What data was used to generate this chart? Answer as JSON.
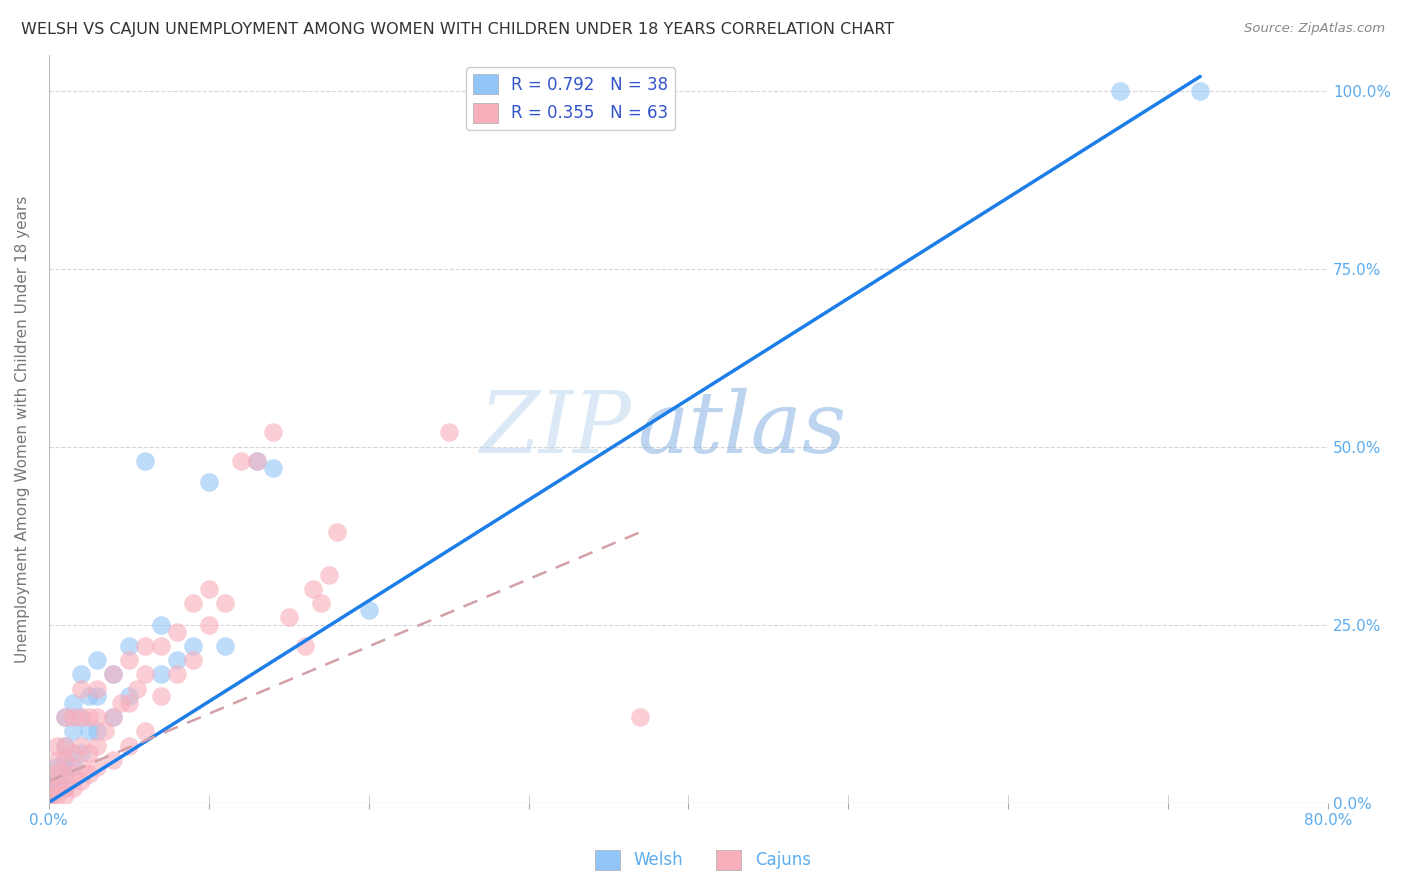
{
  "title": "WELSH VS CAJUN UNEMPLOYMENT AMONG WOMEN WITH CHILDREN UNDER 18 YEARS CORRELATION CHART",
  "source": "Source: ZipAtlas.com",
  "ylabel": "Unemployment Among Women with Children Under 18 years",
  "xlim": [
    0.0,
    0.8
  ],
  "ylim": [
    0.0,
    1.05
  ],
  "welsh_color": "#92C5F7",
  "cajun_color": "#F9AEBB",
  "welsh_line_color": "#1E7EE8",
  "cajun_line_color": "#E8647A",
  "cajun_line_dash_color": "#D4A0A8",
  "welsh_R": 0.792,
  "welsh_N": 38,
  "cajun_R": 0.355,
  "cajun_N": 63,
  "watermark_zip": "ZIP",
  "watermark_atlas": "atlas",
  "legend_label_welsh": "Welsh",
  "legend_label_cajun": "Cajuns",
  "welsh_scatter_x": [
    0.0,
    0.0,
    0.0,
    0.005,
    0.005,
    0.005,
    0.01,
    0.01,
    0.01,
    0.01,
    0.01,
    0.015,
    0.015,
    0.015,
    0.02,
    0.02,
    0.02,
    0.025,
    0.025,
    0.03,
    0.03,
    0.03,
    0.04,
    0.04,
    0.05,
    0.05,
    0.06,
    0.07,
    0.07,
    0.08,
    0.09,
    0.1,
    0.11,
    0.13,
    0.14,
    0.2,
    0.67,
    0.72
  ],
  "welsh_scatter_y": [
    0.0,
    0.01,
    0.02,
    0.02,
    0.03,
    0.05,
    0.02,
    0.04,
    0.06,
    0.08,
    0.12,
    0.05,
    0.1,
    0.14,
    0.07,
    0.12,
    0.18,
    0.1,
    0.15,
    0.1,
    0.15,
    0.2,
    0.12,
    0.18,
    0.15,
    0.22,
    0.48,
    0.18,
    0.25,
    0.2,
    0.22,
    0.45,
    0.22,
    0.48,
    0.47,
    0.27,
    1.0,
    1.0
  ],
  "cajun_scatter_x": [
    0.0,
    0.0,
    0.0,
    0.0,
    0.005,
    0.005,
    0.005,
    0.005,
    0.005,
    0.01,
    0.01,
    0.01,
    0.01,
    0.01,
    0.01,
    0.015,
    0.015,
    0.015,
    0.015,
    0.02,
    0.02,
    0.02,
    0.02,
    0.02,
    0.025,
    0.025,
    0.025,
    0.03,
    0.03,
    0.03,
    0.03,
    0.035,
    0.04,
    0.04,
    0.04,
    0.045,
    0.05,
    0.05,
    0.05,
    0.055,
    0.06,
    0.06,
    0.06,
    0.07,
    0.07,
    0.08,
    0.08,
    0.09,
    0.09,
    0.1,
    0.1,
    0.11,
    0.12,
    0.13,
    0.14,
    0.15,
    0.16,
    0.165,
    0.17,
    0.175,
    0.18,
    0.25,
    0.37
  ],
  "cajun_scatter_y": [
    0.0,
    0.01,
    0.02,
    0.04,
    0.01,
    0.02,
    0.04,
    0.06,
    0.08,
    0.01,
    0.02,
    0.04,
    0.06,
    0.08,
    0.12,
    0.02,
    0.04,
    0.07,
    0.12,
    0.03,
    0.05,
    0.08,
    0.12,
    0.16,
    0.04,
    0.07,
    0.12,
    0.05,
    0.08,
    0.12,
    0.16,
    0.1,
    0.06,
    0.12,
    0.18,
    0.14,
    0.08,
    0.14,
    0.2,
    0.16,
    0.1,
    0.18,
    0.22,
    0.15,
    0.22,
    0.18,
    0.24,
    0.2,
    0.28,
    0.25,
    0.3,
    0.28,
    0.48,
    0.48,
    0.52,
    0.26,
    0.22,
    0.3,
    0.28,
    0.32,
    0.38,
    0.52,
    0.12
  ],
  "welsh_line_x0": 0.0,
  "welsh_line_y0": 0.0,
  "welsh_line_x1": 0.72,
  "welsh_line_y1": 1.02,
  "cajun_line_x0": 0.0,
  "cajun_line_y0": 0.03,
  "cajun_line_x1": 0.37,
  "cajun_line_y1": 0.38,
  "background_color": "#FFFFFF",
  "grid_color": "#CCCCCC",
  "title_color": "#333333",
  "tick_color": "#5BADF0"
}
